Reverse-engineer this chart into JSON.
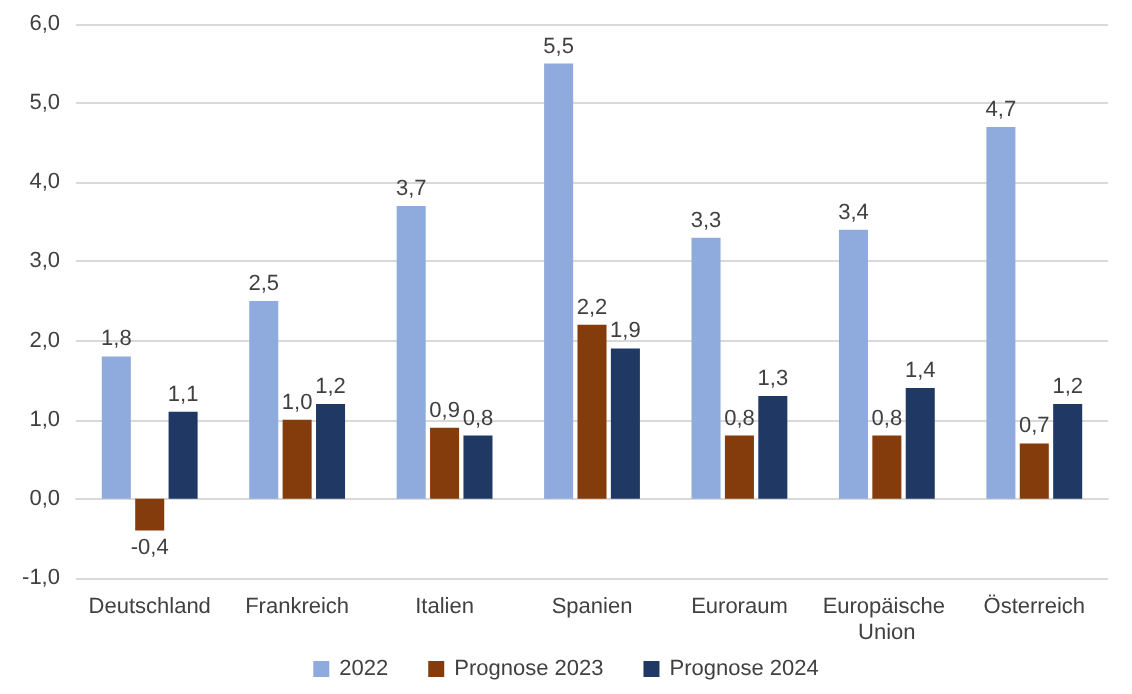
{
  "chart_data": {
    "type": "bar",
    "categories": [
      "Deutschland",
      "Frankreich",
      "Italien",
      "Spanien",
      "Euroraum",
      "Europäische Union",
      "Österreich"
    ],
    "series": [
      {
        "name": "2022",
        "color": "#8faadc",
        "values": [
          1.8,
          2.5,
          3.7,
          5.5,
          3.3,
          3.4,
          4.7
        ],
        "value_labels": [
          "1,8",
          "2,5",
          "3,7",
          "5,5",
          "3,3",
          "3,4",
          "4,7"
        ]
      },
      {
        "name": "Prognose 2023",
        "color": "#843c0c",
        "values": [
          -0.4,
          1.0,
          0.9,
          2.2,
          0.8,
          0.8,
          0.7
        ],
        "value_labels": [
          "-0,4",
          "1,0",
          "0,9",
          "2,2",
          "0,8",
          "0,8",
          "0,7"
        ]
      },
      {
        "name": "Prognose 2024",
        "color": "#203864",
        "values": [
          1.1,
          1.2,
          0.8,
          1.9,
          1.3,
          1.4,
          1.2
        ],
        "value_labels": [
          "1,1",
          "1,2",
          "0,8",
          "1,9",
          "1,3",
          "1,4",
          "1,2"
        ]
      }
    ],
    "ylim": [
      -1,
      6
    ],
    "yticks": [
      {
        "value": -1,
        "label": "-1,0"
      },
      {
        "value": 0,
        "label": "0,0"
      },
      {
        "value": 1,
        "label": "1,0"
      },
      {
        "value": 2,
        "label": "2,0"
      },
      {
        "value": 3,
        "label": "3,0"
      },
      {
        "value": 4,
        "label": "4,0"
      },
      {
        "value": 5,
        "label": "5,0"
      },
      {
        "value": 6,
        "label": "6,0"
      }
    ],
    "grid": "y",
    "legend": "bottom"
  }
}
